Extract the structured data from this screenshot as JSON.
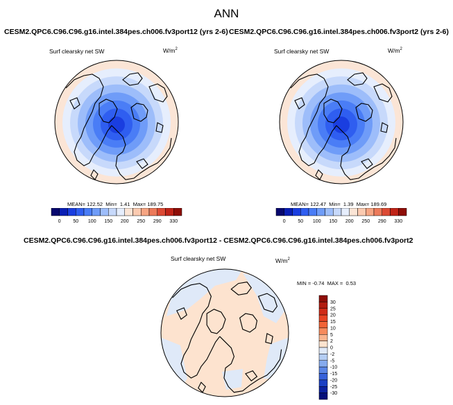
{
  "suptitle": "ANN",
  "panel1": {
    "title": "CESM2.QPC6.C96.C96.g16.intel.384pes.ch006.fv3port12 (yrs 2-6)",
    "variable": "Surf clearsky net SW",
    "units_base": "W/m",
    "units_exp": "2",
    "mean_label": "MEAN=",
    "mean": "122.52",
    "min_label": "Min=",
    "min": "1.41",
    "max_label": "Max=",
    "max": "189.75"
  },
  "panel2": {
    "title": "CESM2.QPC6.C96.C96.g16.intel.384pes.ch006.fv3port2 (yrs 2-6)",
    "variable": "Surf clearsky net SW",
    "units_base": "W/m",
    "units_exp": "2",
    "mean_label": "MEAN=",
    "mean": "122.47",
    "min_label": "Min=",
    "min": "1.39",
    "max_label": "Max=",
    "max": "189.69"
  },
  "panel3": {
    "title": "CESM2.QPC6.C96.C96.g16.intel.384pes.ch006.fv3port12 - CESM2.QPC6.C96.C96.g16.intel.384pes.ch006.fv3port2",
    "variable": "Surf clearsky net SW",
    "units_base": "W/m",
    "units_exp": "2",
    "min_label": "MIN =",
    "min": "-0.74",
    "max_label": "MAX =",
    "max": "0.53"
  },
  "chart_data": [
    {
      "type": "heatmap",
      "projection": "polar-stereographic-north",
      "title": "CESM2.QPC6.C96.C96.g16.intel.384pes.ch006.fv3port12 (yrs 2-6)",
      "variable": "Surf clearsky net SW",
      "colorbar": {
        "orientation": "horizontal",
        "ticks": [
          "0",
          "50",
          "100",
          "150",
          "200",
          "250",
          "290",
          "330"
        ],
        "levels": [
          0,
          25,
          50,
          75,
          100,
          125,
          150,
          175,
          200,
          225,
          250,
          270,
          290,
          310,
          330
        ],
        "colors": [
          "#08086e",
          "#0a1fb4",
          "#1a3ee0",
          "#2f5ef0",
          "#4a7df6",
          "#6f9cf8",
          "#9dbdfa",
          "#c7d9fb",
          "#e6eefd",
          "#fbe5d6",
          "#fbcab0",
          "#f6a583",
          "#ec7a5a",
          "#dc4a34",
          "#c02418",
          "#8e0e08"
        ]
      },
      "rings": [
        {
          "level": 175,
          "color": "#fbe5d6"
        },
        {
          "level": 150,
          "color": "#e6eefd"
        },
        {
          "level": 125,
          "color": "#c7d9fb"
        },
        {
          "level": 100,
          "color": "#9dbdfa"
        },
        {
          "level": 75,
          "color": "#6f9cf8"
        },
        {
          "level": 50,
          "color": "#4a7df6"
        },
        {
          "level": 25,
          "color": "#2f5ef0"
        },
        {
          "level": 0,
          "color": "#1a3ee0"
        }
      ]
    },
    {
      "type": "heatmap",
      "projection": "polar-stereographic-north",
      "title": "CESM2.QPC6.C96.C96.g16.intel.384pes.ch006.fv3port2 (yrs 2-6)",
      "variable": "Surf clearsky net SW",
      "colorbar": {
        "orientation": "horizontal",
        "ticks": [
          "0",
          "50",
          "100",
          "150",
          "200",
          "250",
          "290",
          "330"
        ],
        "levels": [
          0,
          25,
          50,
          75,
          100,
          125,
          150,
          175,
          200,
          225,
          250,
          270,
          290,
          310,
          330
        ],
        "colors": [
          "#08086e",
          "#0a1fb4",
          "#1a3ee0",
          "#2f5ef0",
          "#4a7df6",
          "#6f9cf8",
          "#9dbdfa",
          "#c7d9fb",
          "#e6eefd",
          "#fbe5d6",
          "#fbcab0",
          "#f6a583",
          "#ec7a5a",
          "#dc4a34",
          "#c02418",
          "#8e0e08"
        ]
      },
      "rings": [
        {
          "level": 175,
          "color": "#fbe5d6"
        },
        {
          "level": 150,
          "color": "#e6eefd"
        },
        {
          "level": 125,
          "color": "#c7d9fb"
        },
        {
          "level": 100,
          "color": "#9dbdfa"
        },
        {
          "level": 75,
          "color": "#6f9cf8"
        },
        {
          "level": 50,
          "color": "#4a7df6"
        },
        {
          "level": 25,
          "color": "#2f5ef0"
        },
        {
          "level": 0,
          "color": "#1a3ee0"
        }
      ]
    },
    {
      "type": "heatmap",
      "projection": "polar-stereographic-north",
      "title": "CESM2.QPC6.C96.C96.g16.intel.384pes.ch006.fv3port12 - CESM2.QPC6.C96.C96.g16.intel.384pes.ch006.fv3port2",
      "variable": "Surf clearsky net SW",
      "colorbar": {
        "orientation": "vertical",
        "ticks": [
          "30",
          "25",
          "20",
          "15",
          "10",
          "5",
          "2",
          "0",
          "-2",
          "-5",
          "-10",
          "-15",
          "-20",
          "-25",
          "-30"
        ],
        "colors": [
          "#8e0e08",
          "#b21c10",
          "#d02c18",
          "#e84424",
          "#f26436",
          "#f78a5c",
          "#fab48e",
          "#fde3cf",
          "#dfe9f8",
          "#b4cdf4",
          "#86abee",
          "#5b86e6",
          "#3762da",
          "#1b40c4",
          "#0c22a0",
          "#06107a"
        ]
      },
      "background_value_color": "#fde3cf",
      "patch_value_color": "#dfe9f8"
    }
  ]
}
